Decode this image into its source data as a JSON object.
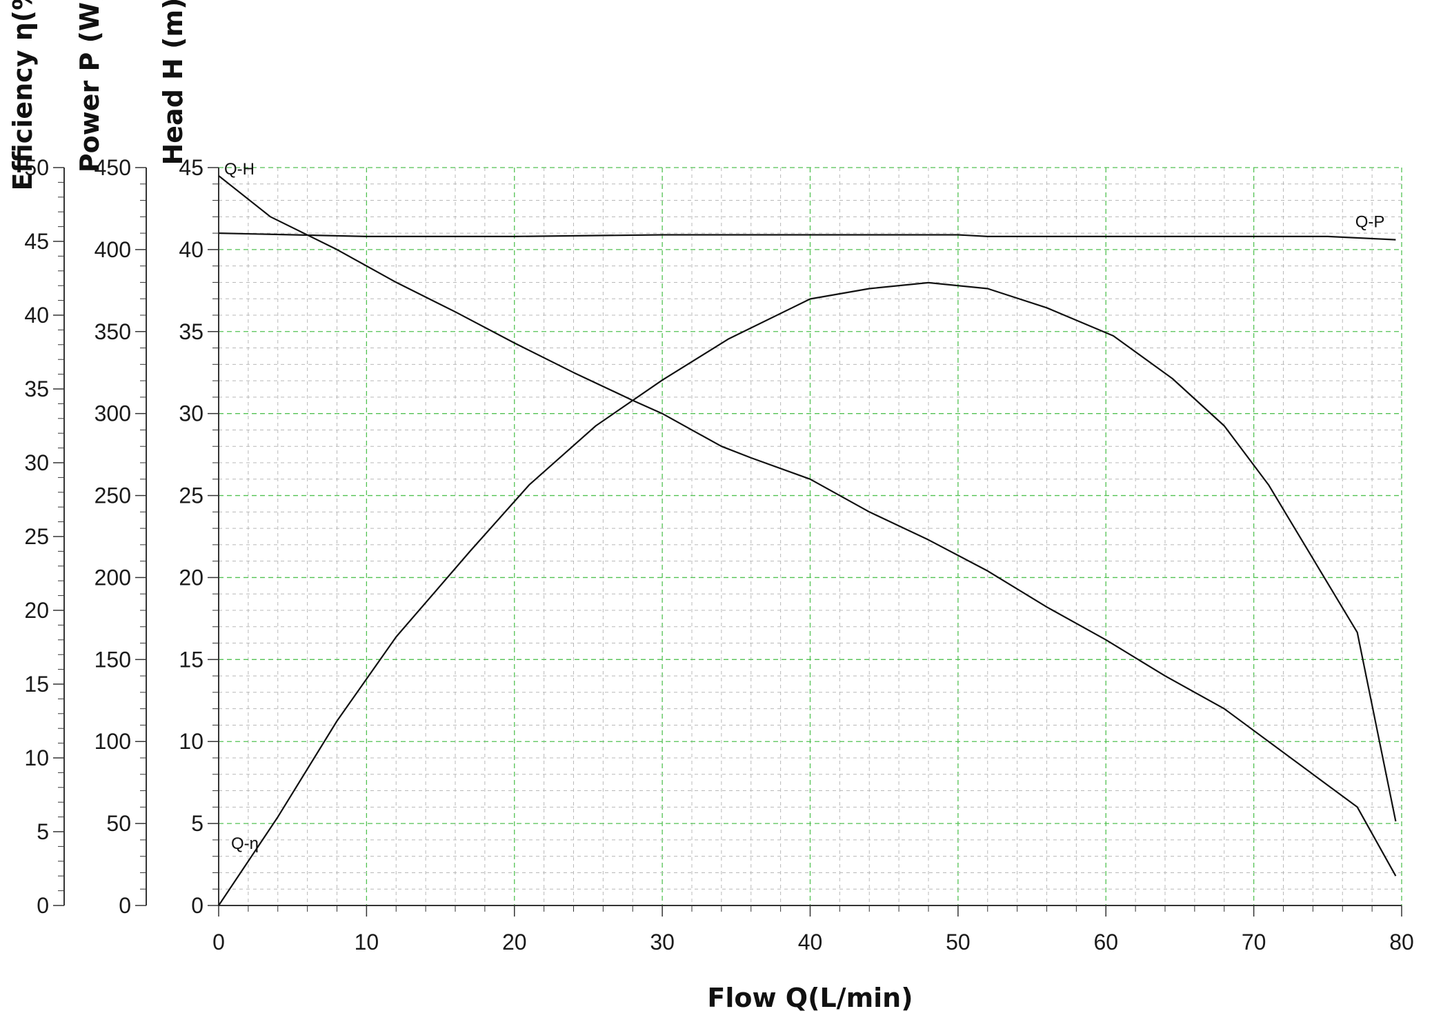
{
  "chart_data": {
    "type": "line",
    "xlabel": "Flow Q(L/min)",
    "xlim": [
      0,
      80
    ],
    "x_ticks": [
      "0",
      "10",
      "20",
      "30",
      "40",
      "50",
      "60",
      "70",
      "80"
    ],
    "grid": true,
    "axes": [
      {
        "id": "head",
        "label": "Head H (m)",
        "ylim": [
          0,
          45
        ],
        "ticks": [
          "0",
          "5",
          "10",
          "15",
          "20",
          "25",
          "30",
          "35",
          "40",
          "45"
        ]
      },
      {
        "id": "power",
        "label": "Power P (W)",
        "ylim": [
          0,
          450
        ],
        "ticks": [
          "0",
          "50",
          "100",
          "150",
          "200",
          "250",
          "300",
          "350",
          "400",
          "450"
        ]
      },
      {
        "id": "efficiency",
        "label": "Efficiency η(%)",
        "ylim": [
          0,
          50
        ],
        "ticks": [
          "0",
          "5",
          "10",
          "15",
          "20",
          "25",
          "30",
          "35",
          "40",
          "45",
          "50"
        ]
      }
    ],
    "series": [
      {
        "name": "Q-H",
        "axis": "head",
        "points": [
          [
            0,
            44.5
          ],
          [
            3.5,
            42
          ],
          [
            8,
            40
          ],
          [
            12,
            38
          ],
          [
            16,
            36.2
          ],
          [
            20,
            34.3
          ],
          [
            24,
            32.5
          ],
          [
            28,
            30.8
          ],
          [
            30,
            30
          ],
          [
            34,
            28
          ],
          [
            36,
            27.3
          ],
          [
            40,
            26
          ],
          [
            44,
            24
          ],
          [
            48,
            22.3
          ],
          [
            52,
            20.4
          ],
          [
            56,
            18.2
          ],
          [
            60,
            16.2
          ],
          [
            64,
            14
          ],
          [
            68,
            12
          ],
          [
            71,
            10
          ],
          [
            74,
            8
          ],
          [
            77,
            6
          ],
          [
            79.6,
            1.8
          ]
        ]
      },
      {
        "name": "Q-P",
        "axis": "power",
        "points": [
          [
            0,
            410
          ],
          [
            10,
            408
          ],
          [
            20,
            408
          ],
          [
            30,
            409
          ],
          [
            40,
            409
          ],
          [
            50,
            409
          ],
          [
            52,
            408
          ],
          [
            60,
            408
          ],
          [
            70,
            408
          ],
          [
            75,
            408
          ],
          [
            79.6,
            406
          ]
        ]
      },
      {
        "name": "Q-η",
        "axis": "efficiency",
        "points": [
          [
            0,
            0
          ],
          [
            4,
            6
          ],
          [
            8,
            12.5
          ],
          [
            12,
            18.2
          ],
          [
            17,
            24
          ],
          [
            21,
            28.5
          ],
          [
            25.5,
            32.5
          ],
          [
            30,
            35.6
          ],
          [
            34.5,
            38.4
          ],
          [
            40,
            41.1
          ],
          [
            44,
            41.8
          ],
          [
            48,
            42.2
          ],
          [
            52,
            41.8
          ],
          [
            56,
            40.5
          ],
          [
            60.5,
            38.6
          ],
          [
            64.5,
            35.7
          ],
          [
            68,
            32.5
          ],
          [
            71,
            28.5
          ],
          [
            77,
            18.5
          ],
          [
            79.6,
            5.7
          ]
        ]
      }
    ]
  }
}
